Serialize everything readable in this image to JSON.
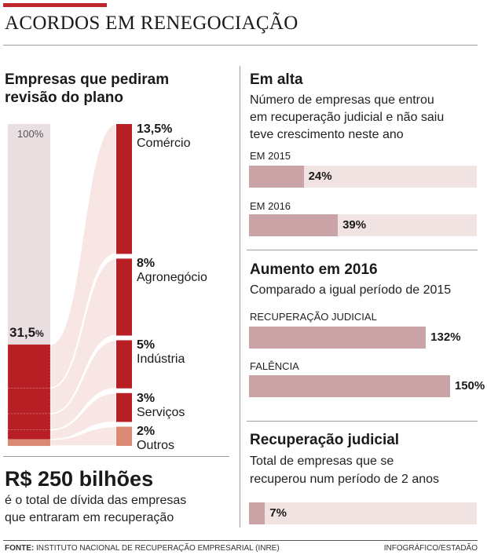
{
  "header": {
    "title": "ACORDOS EM RENEGOCIAÇÃO"
  },
  "left": {
    "title_line1": "Empresas que pediram",
    "title_line2": "revisão do plano",
    "total_label": "100%",
    "share_value": "31,5",
    "share_unit": "%",
    "colors": {
      "background_bar": "#e9dfe1",
      "sector": "#b81f24",
      "outros": "#da8a72",
      "flow": "#f7e6e3"
    }
  },
  "chart_data": [
    {
      "type": "bar",
      "title": "Empresas que pediram revisão do plano",
      "total": 100,
      "share_of_total": 31.5,
      "categories": [
        "Comércio",
        "Agronegócio",
        "Indústria",
        "Serviços",
        "Outros"
      ],
      "values": [
        13.5,
        8,
        5,
        3,
        2
      ],
      "labels": [
        "13,5%",
        "8%",
        "5%",
        "3%",
        "2%"
      ]
    },
    {
      "type": "bar",
      "title": "Em alta",
      "categories": [
        "EM 2015",
        "EM 2016"
      ],
      "values": [
        24,
        39
      ],
      "labels": [
        "24%",
        "39%"
      ],
      "ylim": [
        0,
        100
      ]
    },
    {
      "type": "bar",
      "title": "Aumento em 2016",
      "categories": [
        "RECUPERAÇÃO JUDICIAL",
        "FALÊNCIA"
      ],
      "values": [
        132,
        150
      ],
      "labels": [
        "132%",
        "150%"
      ]
    },
    {
      "type": "bar",
      "title": "Recuperação judicial",
      "categories": [
        ""
      ],
      "values": [
        7
      ],
      "labels": [
        "7%"
      ],
      "ylim": [
        0,
        100
      ]
    }
  ],
  "em_alta": {
    "title": "Em alta",
    "sub1": "Número de empresas que entrou",
    "sub2": "em recuperação judicial e não saiu",
    "sub3": "teve crescimento neste ano"
  },
  "aumento": {
    "title": "Aumento em 2016",
    "sub": "Comparado a igual período de 2015"
  },
  "recuperacao": {
    "title": "Recuperação judicial",
    "sub1": "Total de empresas que se",
    "sub2": "recuperou num período de 2 anos"
  },
  "bottom_left": {
    "amount": "R$ 250 bilhões",
    "line1": "é o total de dívida das empresas",
    "line2": "que entraram em recuperação"
  },
  "footer": {
    "source_label": "FONTE:",
    "source_text": "INSTITUTO NACIONAL DE RECUPERAÇÃO EMPRESARIAL (INRE)",
    "credit": "INFOGRÁFICO/ESTADÃO"
  }
}
